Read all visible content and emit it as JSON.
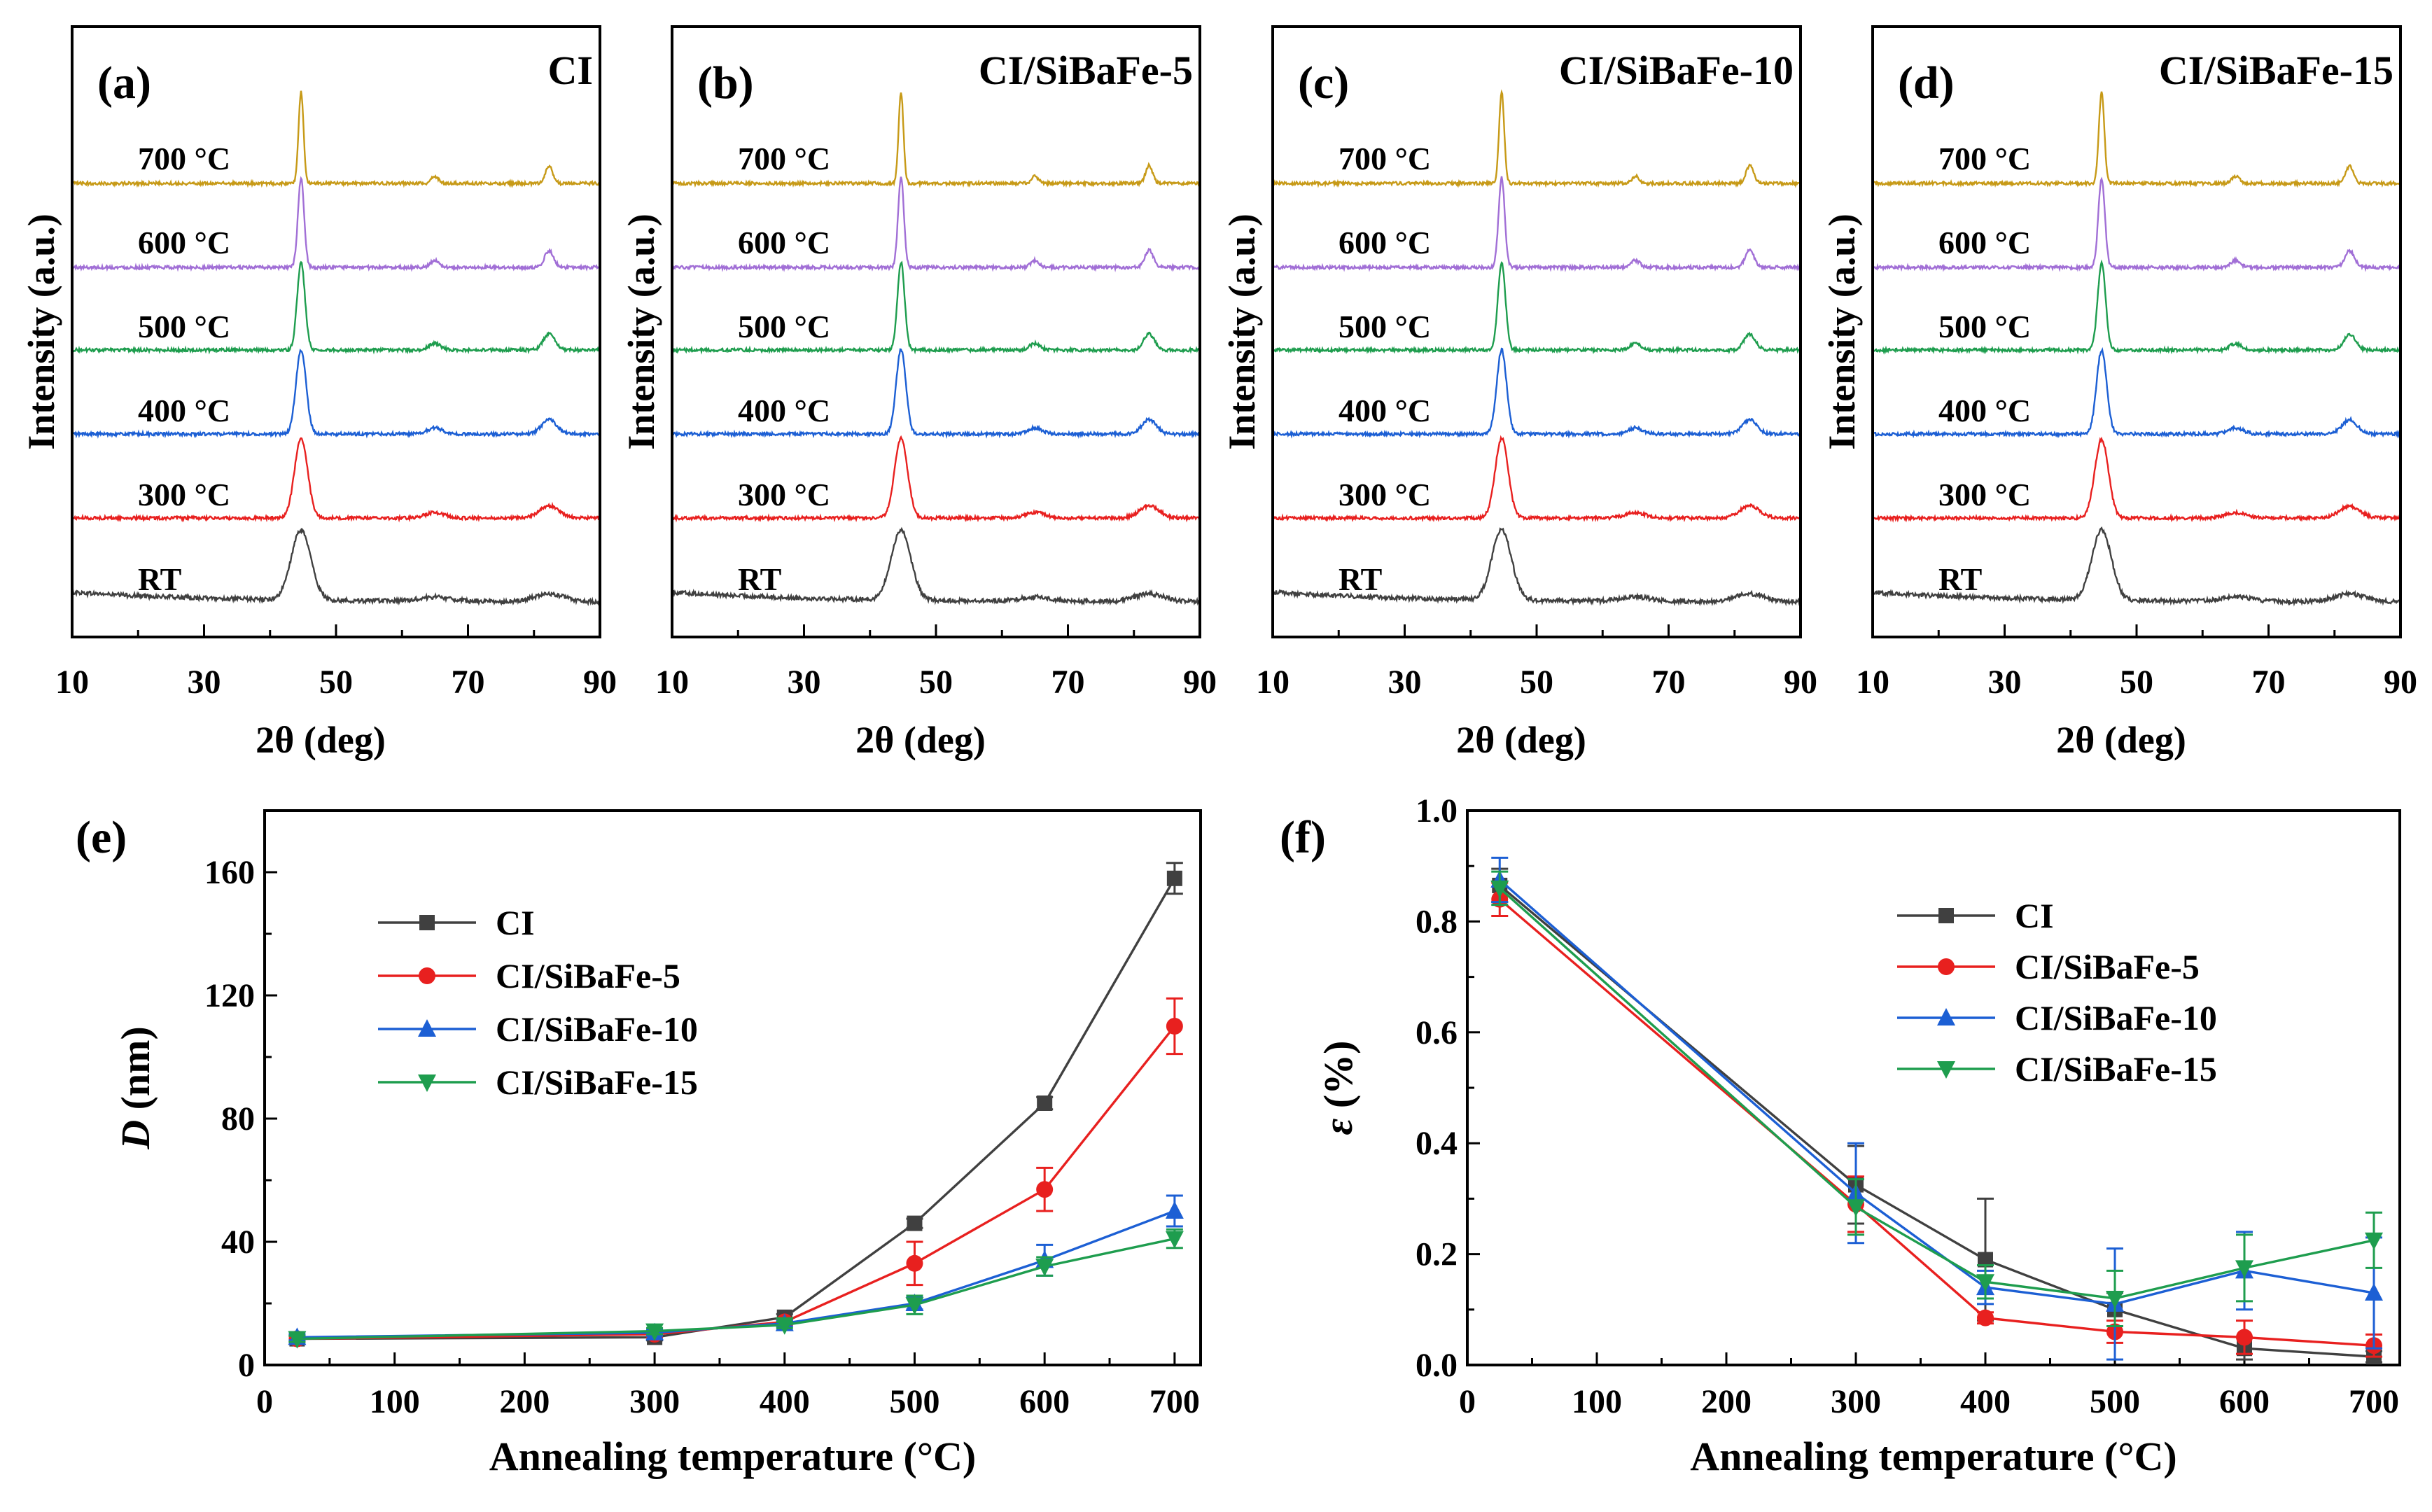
{
  "figure": {
    "xrd_panels": [
      {
        "label": "(a)",
        "sample": "CI"
      },
      {
        "label": "(b)",
        "sample": "CI/SiBaFe-5"
      },
      {
        "label": "(c)",
        "sample": "CI/SiBaFe-10"
      },
      {
        "label": "(d)",
        "sample": "CI/SiBaFe-15"
      }
    ],
    "xrd_ylabel": "Intensity (a.u.)",
    "xrd_xlabel": "2θ (deg)",
    "xrd_xticks": [
      "10",
      "30",
      "50",
      "70",
      "90"
    ],
    "xrd_traces": [
      {
        "label": "RT",
        "color": "#404040"
      },
      {
        "label": "300 °C",
        "color": "#e8201f"
      },
      {
        "label": "400 °C",
        "color": "#1c5fd4"
      },
      {
        "label": "500 °C",
        "color": "#1e9d4e"
      },
      {
        "label": "600 °C",
        "color": "#a16fd6"
      },
      {
        "label": "700 °C",
        "color": "#c79a17"
      }
    ]
  },
  "chart_data": [
    {
      "type": "line",
      "panel": "(e)",
      "title": "",
      "xlabel": "Annealing temperature (°C)",
      "ylabel_symbol": "D",
      "ylabel_unit": "(nm)",
      "xlim": [
        0,
        720
      ],
      "ylim": [
        0,
        180
      ],
      "xticks": [
        0,
        100,
        200,
        300,
        400,
        500,
        600,
        700
      ],
      "yticks": [
        0,
        40,
        80,
        120,
        160
      ],
      "x": [
        25,
        300,
        400,
        500,
        600,
        700
      ],
      "series": [
        {
          "name": "CI",
          "color": "#404040",
          "marker": "square",
          "values": [
            8.5,
            9,
            15.5,
            46,
            85,
            158
          ],
          "errors": [
            1,
            1,
            1,
            1.5,
            2,
            5
          ]
        },
        {
          "name": "CI/SiBaFe-5",
          "color": "#e8201f",
          "marker": "circle",
          "values": [
            8.5,
            10,
            14,
            33,
            57,
            110
          ],
          "errors": [
            1,
            1,
            1,
            7,
            7,
            9
          ]
        },
        {
          "name": "CI/SiBaFe-10",
          "color": "#1c5fd4",
          "marker": "triangle-up",
          "values": [
            9,
            10.5,
            13.5,
            20,
            34,
            50
          ],
          "errors": [
            1,
            1,
            1,
            2,
            5,
            5
          ]
        },
        {
          "name": "CI/SiBaFe-15",
          "color": "#1e9d4e",
          "marker": "triangle-down",
          "values": [
            8.5,
            11,
            13,
            19.5,
            32,
            41
          ],
          "errors": [
            1,
            1,
            1,
            3,
            3,
            3
          ]
        }
      ],
      "legend": "upper-left"
    },
    {
      "type": "line",
      "panel": "(f)",
      "title": "",
      "xlabel": "Annealing temperature (°C)",
      "ylabel_symbol": "ε",
      "ylabel_unit": "(%)",
      "xlim": [
        0,
        720
      ],
      "ylim": [
        0,
        1.0
      ],
      "xticks": [
        0,
        100,
        200,
        300,
        400,
        500,
        600,
        700
      ],
      "yticks": [
        "0.0",
        "0.2",
        "0.4",
        "0.6",
        "0.8",
        "1.0"
      ],
      "x": [
        25,
        300,
        400,
        500,
        600,
        700
      ],
      "series": [
        {
          "name": "CI",
          "color": "#404040",
          "marker": "square",
          "values": [
            0.865,
            0.325,
            0.19,
            0.1,
            0.03,
            0.015
          ],
          "errors": [
            0.03,
            0.07,
            0.11,
            0.03,
            0.02,
            0.01
          ]
        },
        {
          "name": "CI/SiBaFe-5",
          "color": "#e8201f",
          "marker": "circle",
          "values": [
            0.84,
            0.29,
            0.085,
            0.06,
            0.05,
            0.035
          ],
          "errors": [
            0.03,
            0.05,
            0.01,
            0.02,
            0.03,
            0.02
          ]
        },
        {
          "name": "CI/SiBaFe-10",
          "color": "#1c5fd4",
          "marker": "triangle-up",
          "values": [
            0.875,
            0.31,
            0.14,
            0.11,
            0.17,
            0.13
          ],
          "errors": [
            0.04,
            0.09,
            0.03,
            0.1,
            0.07,
            0.1
          ]
        },
        {
          "name": "CI/SiBaFe-15",
          "color": "#1e9d4e",
          "marker": "triangle-down",
          "values": [
            0.86,
            0.285,
            0.15,
            0.12,
            0.175,
            0.225
          ],
          "errors": [
            0.03,
            0.05,
            0.03,
            0.05,
            0.06,
            0.05
          ]
        }
      ],
      "legend": "upper-right"
    }
  ]
}
